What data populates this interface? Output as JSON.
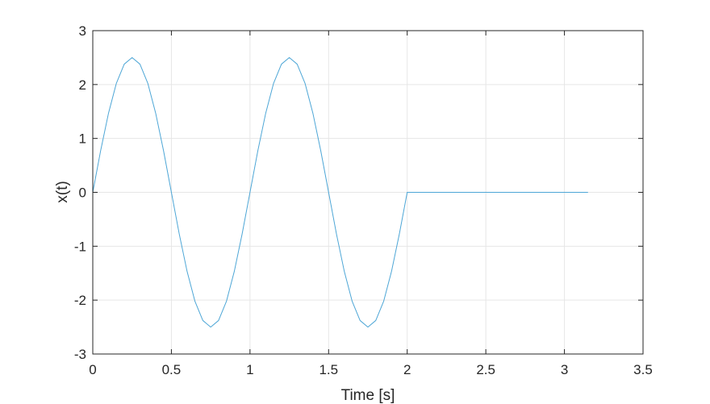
{
  "chart_data": {
    "type": "line",
    "title": "",
    "xlabel": "Time [s]",
    "ylabel": "x(t)",
    "xlim": [
      0,
      3.5
    ],
    "ylim": [
      -3,
      3
    ],
    "xticks": [
      0,
      0.5,
      1,
      1.5,
      2,
      2.5,
      3,
      3.5
    ],
    "xtick_labels": [
      "0",
      "0.5",
      "1",
      "1.5",
      "2",
      "2.5",
      "3",
      "3.5"
    ],
    "yticks": [
      -3,
      -2,
      -1,
      0,
      1,
      2,
      3
    ],
    "ytick_labels": [
      "-3",
      "-2",
      "-1",
      "0",
      "1",
      "2",
      "3"
    ],
    "grid": true,
    "legend": "none",
    "colors": {
      "line": "#4da6d6",
      "grid": "#e6e6e6",
      "axis": "#262626",
      "background": "#ffffff"
    },
    "series": [
      {
        "x": [
          0,
          0.05,
          0.1,
          0.15,
          0.2,
          0.25,
          0.3,
          0.35,
          0.4,
          0.45,
          0.5,
          0.55,
          0.6,
          0.65,
          0.7,
          0.75,
          0.8,
          0.85,
          0.9,
          0.95,
          1,
          1.05,
          1.1,
          1.15,
          1.2,
          1.25,
          1.3,
          1.35,
          1.4,
          1.45,
          1.5,
          1.55,
          1.6,
          1.65,
          1.7,
          1.75,
          1.8,
          1.85,
          1.9,
          1.95,
          2,
          2.05,
          2.1,
          2.15,
          2.2,
          2.25,
          2.3,
          2.35,
          2.4,
          2.45,
          2.5,
          2.55,
          2.6,
          2.65,
          2.7,
          2.75,
          2.8,
          2.85,
          2.9,
          2.95,
          3,
          3.05,
          3.1,
          3.15
        ],
        "values": [
          0,
          0.773,
          1.469,
          2.023,
          2.378,
          2.5,
          2.378,
          2.023,
          1.469,
          0.773,
          0,
          -0.773,
          -1.469,
          -2.023,
          -2.378,
          -2.5,
          -2.378,
          -2.023,
          -1.469,
          -0.773,
          0,
          0.773,
          1.469,
          2.023,
          2.378,
          2.5,
          2.378,
          2.023,
          1.469,
          0.773,
          0,
          -0.773,
          -1.469,
          -2.023,
          -2.378,
          -2.5,
          -2.378,
          -2.023,
          -1.469,
          -0.773,
          0,
          0,
          0,
          0,
          0,
          0,
          0,
          0,
          0,
          0,
          0,
          0,
          0,
          0,
          0,
          0,
          0,
          0,
          0,
          0,
          0,
          0,
          0,
          0
        ]
      }
    ]
  }
}
